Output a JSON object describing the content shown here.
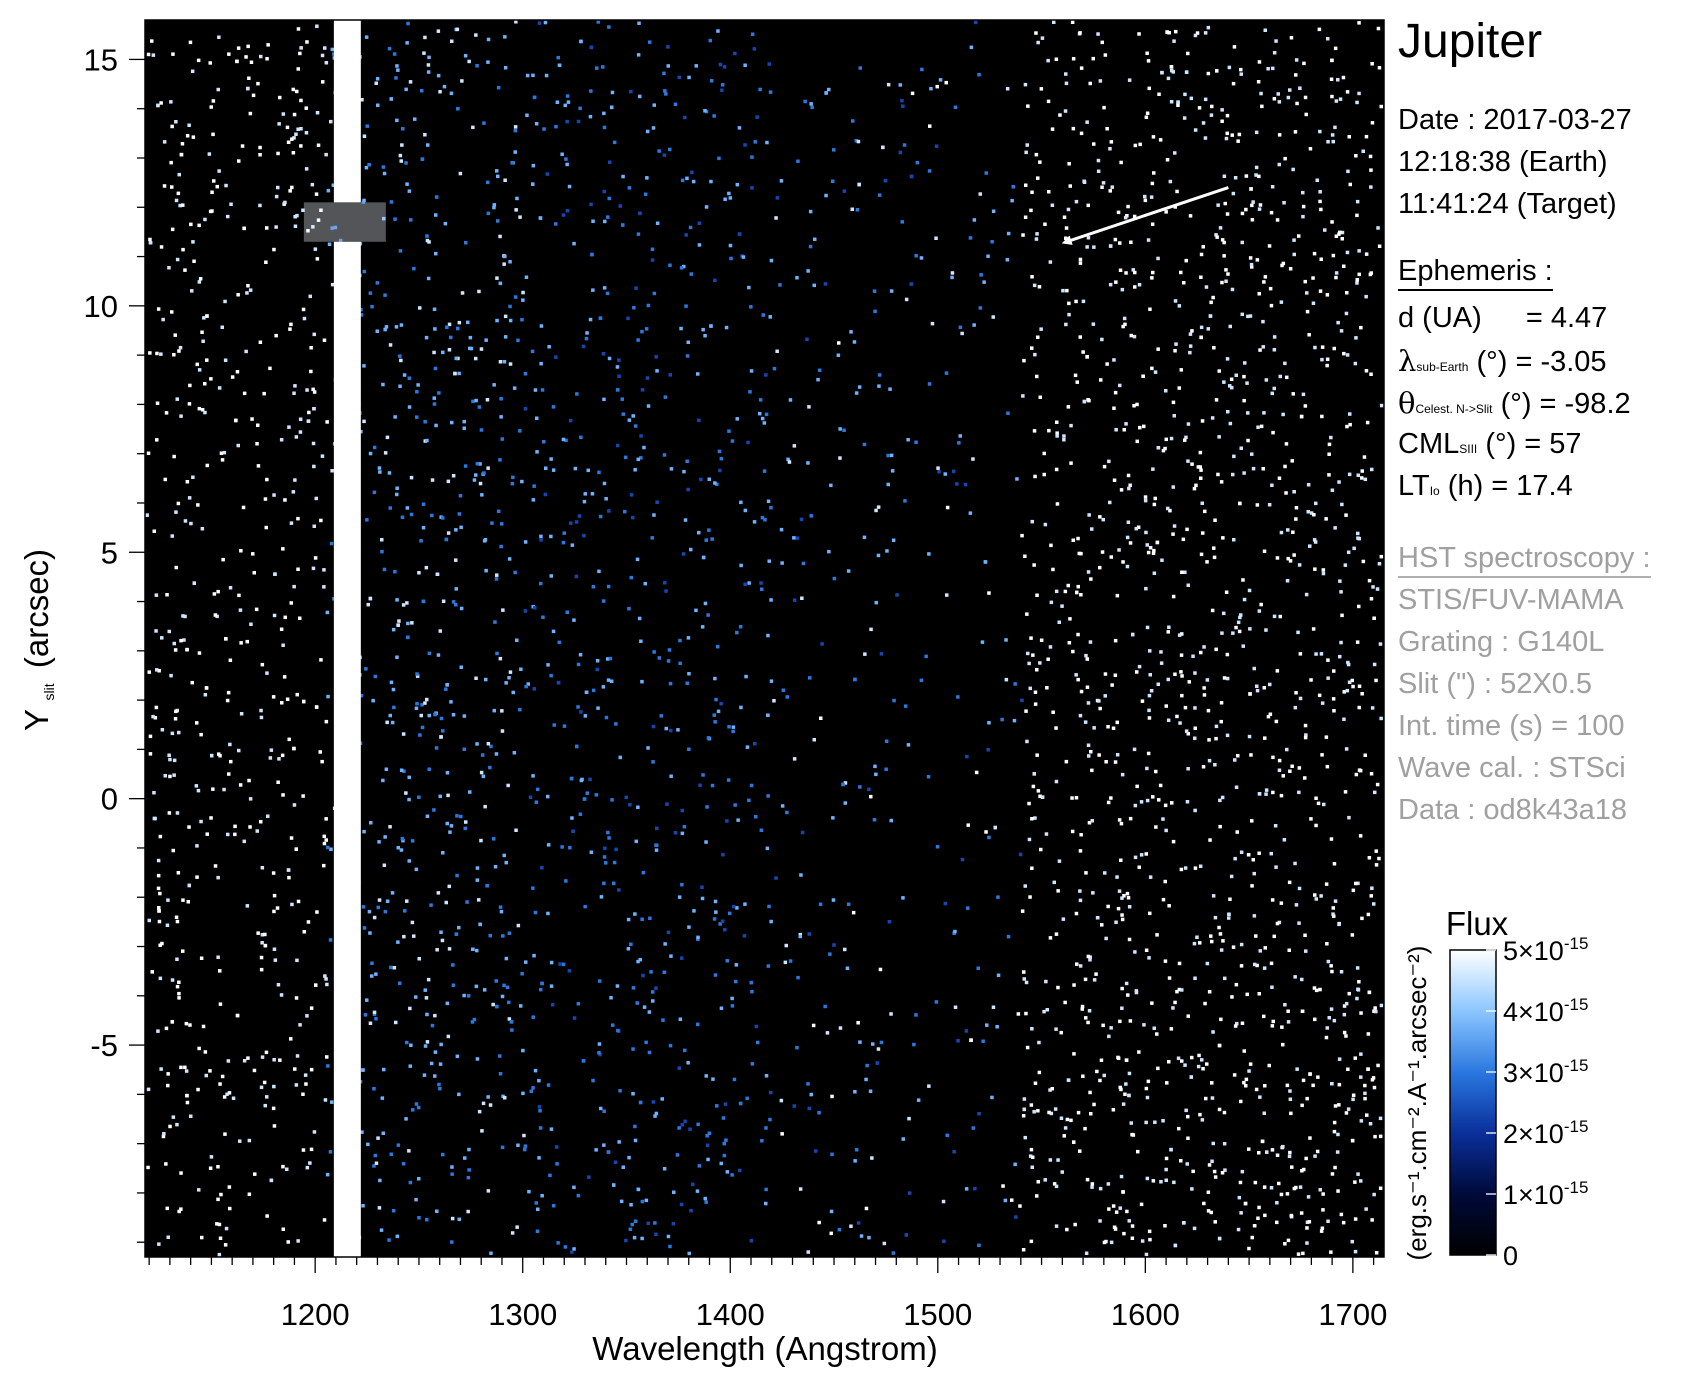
{
  "chart_data": {
    "type": "heatmap",
    "xlabel": "Wavelength (Angstrom)",
    "ylabel_main": "Y",
    "ylabel_sub": "slit",
    "ylabel_unit": "(arcsec)",
    "xlim": [
      1118,
      1715
    ],
    "ylim": [
      -9.3,
      15.8
    ],
    "x_ticks": [
      1200,
      1300,
      1400,
      1500,
      1600,
      1700
    ],
    "y_ticks": [
      15,
      10,
      5,
      0,
      -5
    ],
    "y_tick_labels": [
      "15",
      "10",
      "5",
      "0",
      "-5"
    ],
    "bright_band_x": [
      1209,
      1222
    ],
    "bright_band_gap_y": [
      11.3,
      12.1
    ],
    "arrow": {
      "from": [
        1640,
        12.4
      ],
      "to": [
        1562,
        11.3
      ]
    },
    "colorbar": {
      "title": "Flux",
      "unit_label": "(erg.s⁻¹.cm⁻².A⁻¹.arcsec⁻²)",
      "min": 0,
      "max": 5e-15,
      "tick_values": [
        0,
        1e-15,
        2e-15,
        3e-15,
        4e-15,
        5e-15
      ],
      "tick_labels": [
        "0",
        "1×10",
        "2×10",
        "3×10",
        "4×10",
        "5×10"
      ],
      "tick_exp": "-15",
      "colors": [
        "#000000",
        "#000a3a",
        "#0a2f9a",
        "#2a78e0",
        "#8cc6ff",
        "#ffffff"
      ]
    }
  },
  "info": {
    "title": "Jupiter",
    "date": "Date : 2017-03-27",
    "time_earth": "12:18:38 (Earth)",
    "time_target": "11:41:24 (Target)",
    "ephemeris_head": "Ephemeris :",
    "d_label": "d (UA)",
    "d_value": "= 4.47",
    "lambda_sym": "λ",
    "lambda_sub": "sub-Earth",
    "lambda_rest": "(°)  = -3.05",
    "theta_sym": "θ",
    "theta_sub": "Celest. N->Slit",
    "theta_rest": "(°) = -98.2",
    "cml_main": "CML",
    "cml_sub": "SIII",
    "cml_rest": "(°) = 57",
    "lt_main": "LT",
    "lt_sub": "Io",
    "lt_rest": "(h) = 17.4",
    "hst_head": "HST spectroscopy :",
    "instrument": "STIS/FUV-MAMA",
    "grating": "Grating : G140L",
    "slit": "Slit (\") : 52X0.5",
    "int_time": "Int. time (s) = 100",
    "wave_cal": "Wave cal. : STSci",
    "data_id": "Data : od8k43a18"
  },
  "colors": {
    "background": "#000000",
    "axis": "#000000",
    "arrow": "#ffffff"
  }
}
